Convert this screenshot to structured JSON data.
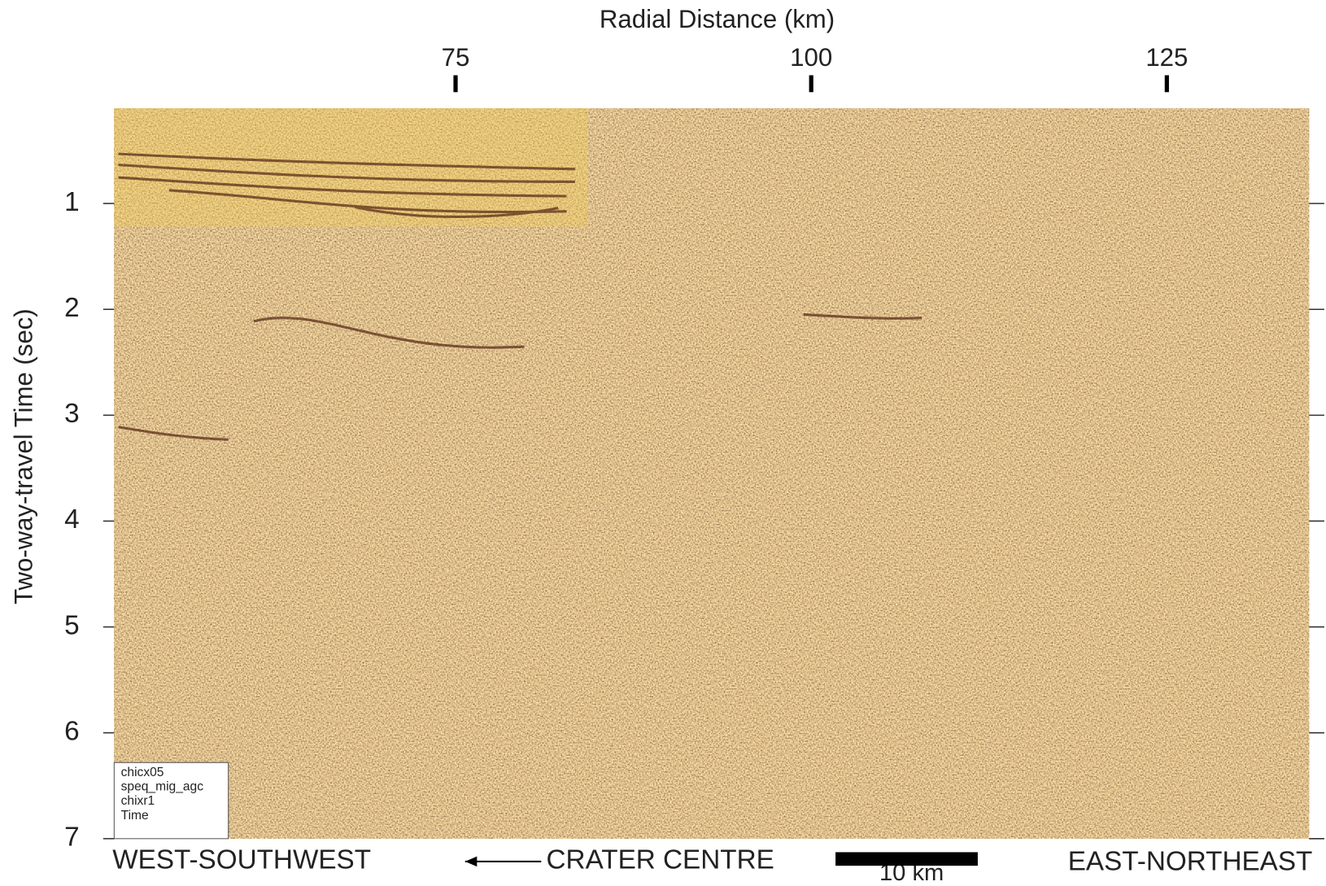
{
  "chart_data": {
    "type": "seismic-section",
    "xlabel": "Radial Distance (km)",
    "ylabel": "Two-way-travel Time (sec)",
    "xlim": [
      51,
      135
    ],
    "xticks": [
      75,
      100,
      125
    ],
    "ylim": [
      0.1,
      7
    ],
    "yticks": [
      1,
      2,
      3,
      4,
      5,
      6,
      7
    ],
    "y_inverted": true,
    "stamp": [
      "chicx05",
      "speq_mig_agc",
      "chixr1",
      "Time"
    ],
    "left_label": "WEST-SOUTHWEST",
    "center_label": "CRATER CENTRE",
    "right_label": "EAST-NORTHEAST",
    "scale_bar": {
      "value": 10,
      "label": "10 km"
    }
  }
}
